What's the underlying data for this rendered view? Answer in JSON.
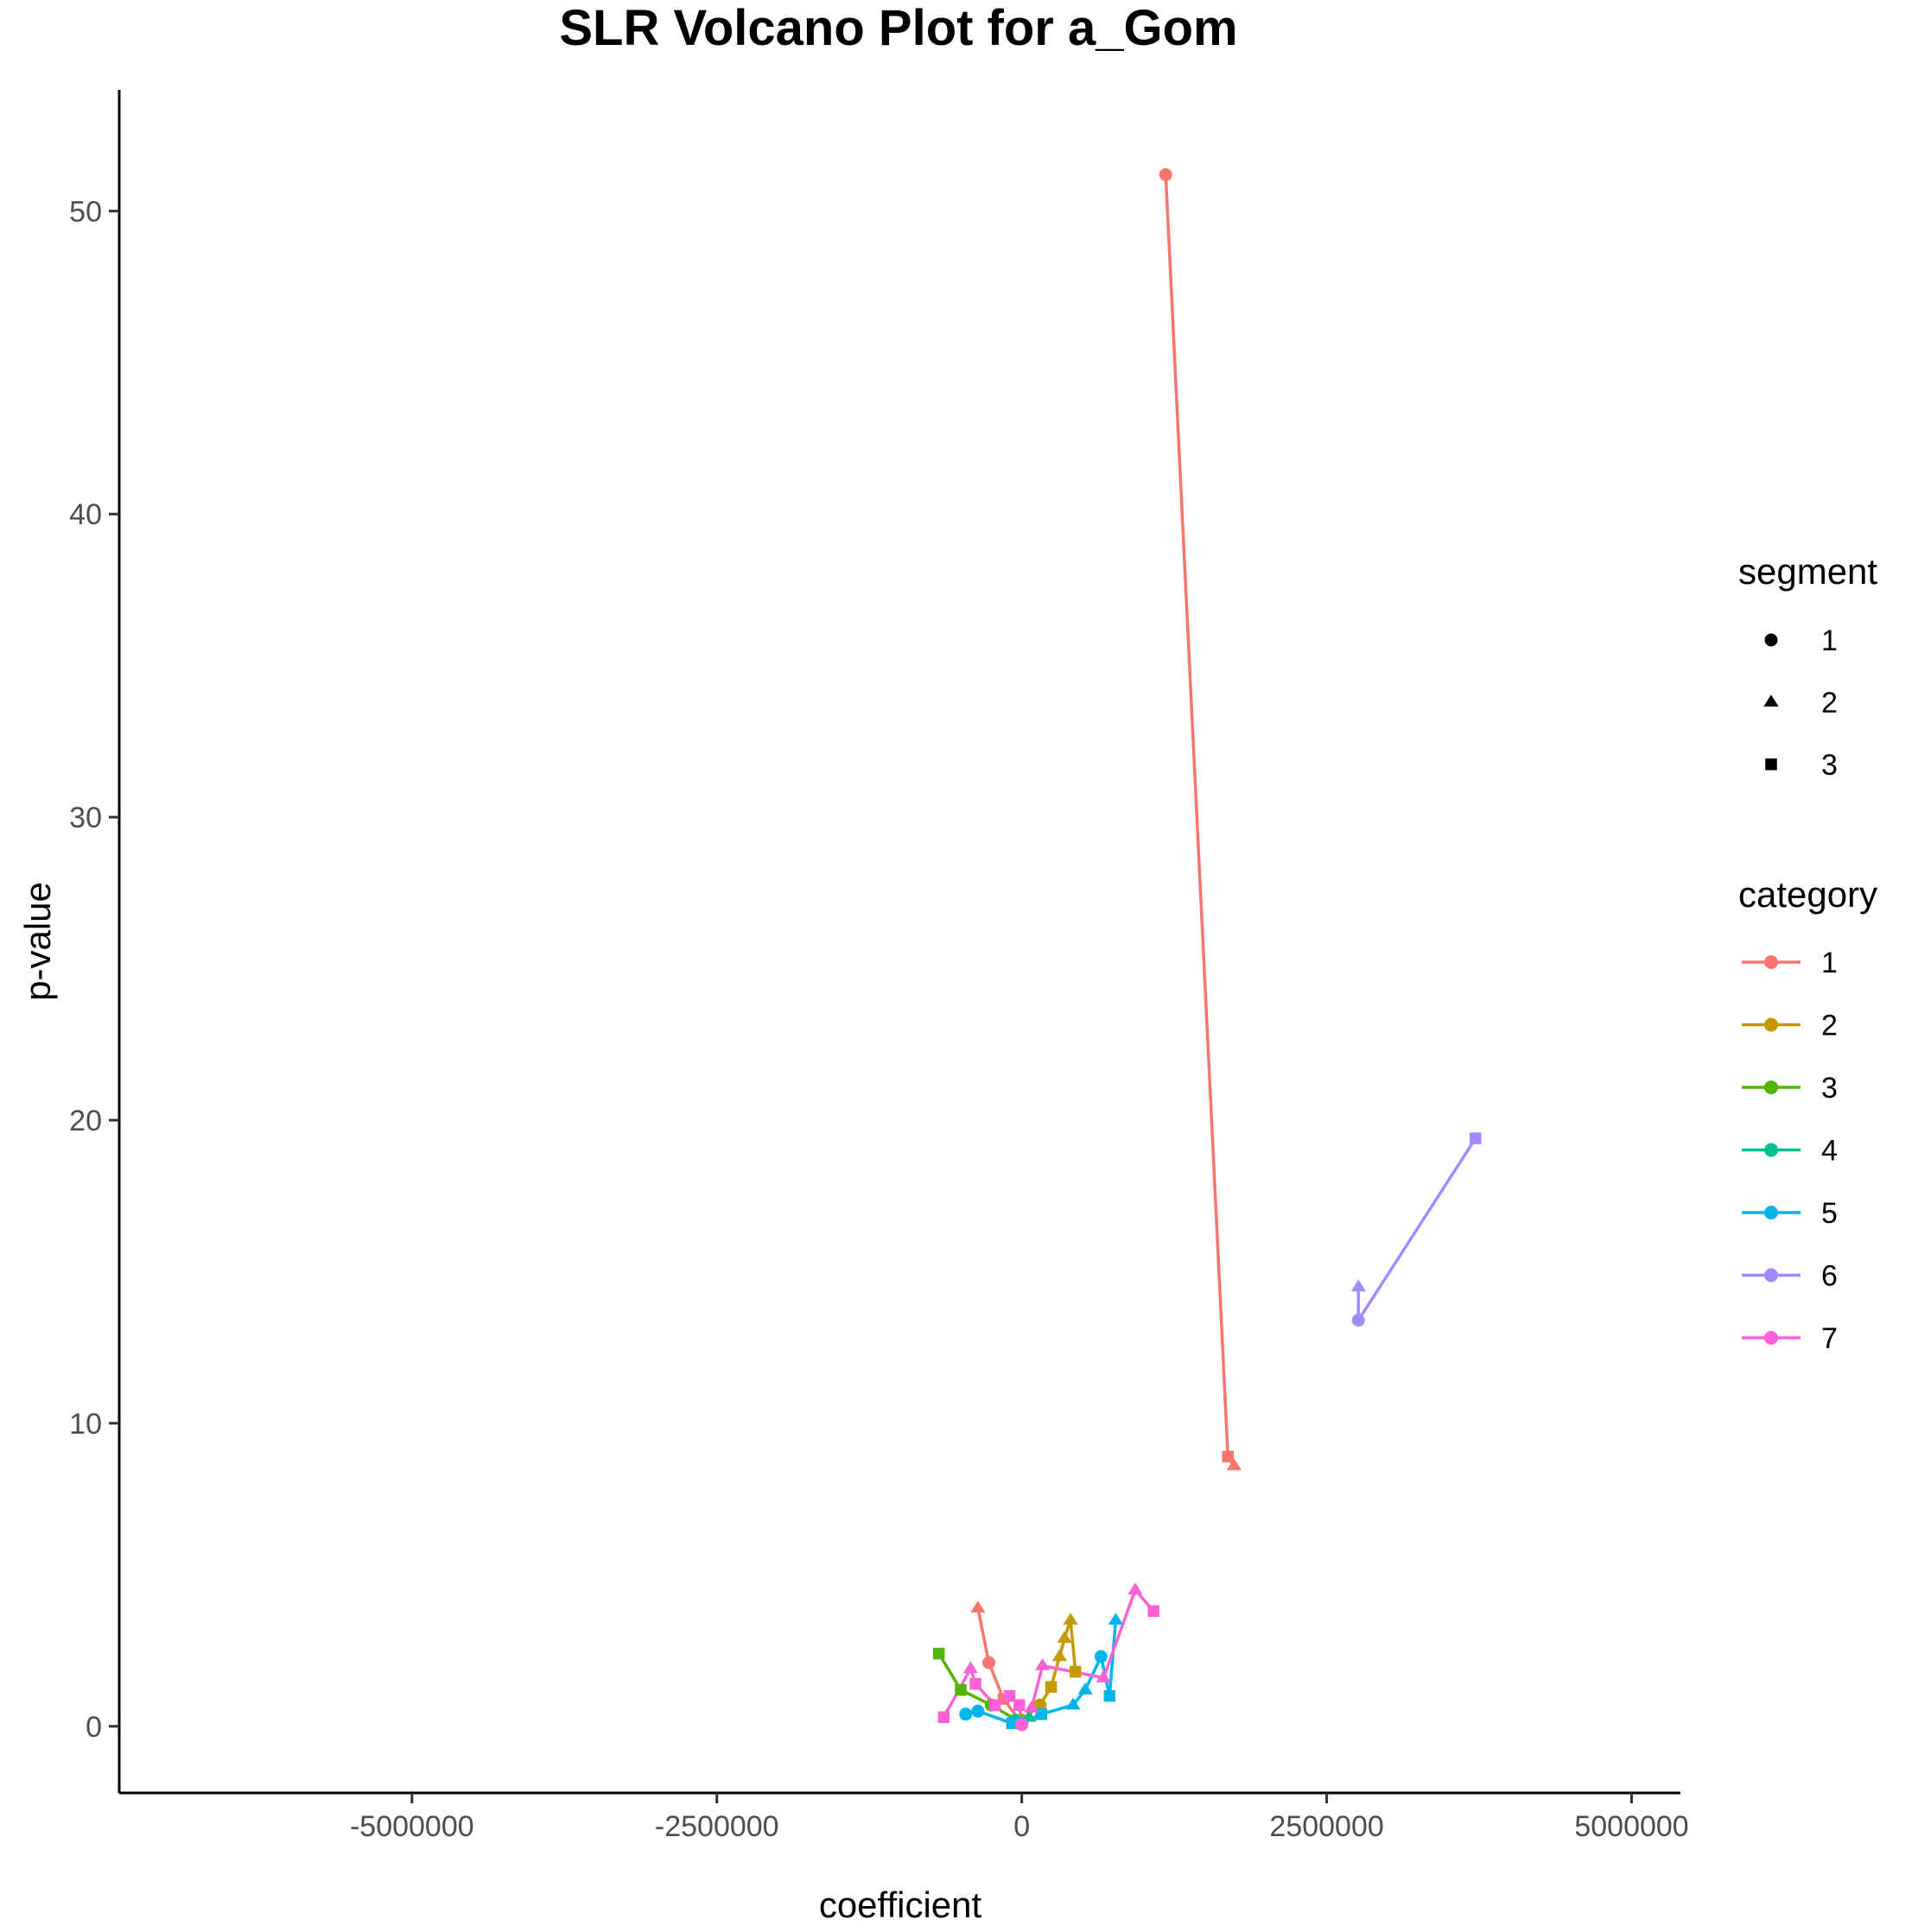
{
  "chart_data": {
    "type": "scatter",
    "title": "SLR Volcano Plot for a_Gom",
    "xlabel": "coefficient",
    "ylabel": "p-value",
    "xlim": [
      -7400000,
      5400000
    ],
    "ylim": [
      -2.2,
      54
    ],
    "x_ticks": [
      -5000000,
      -2500000,
      0,
      2500000,
      5000000
    ],
    "x_tick_labels": [
      "-5000000",
      "-2500000",
      "0",
      "2500000",
      "5000000"
    ],
    "y_ticks": [
      0,
      10,
      20,
      30,
      40,
      50
    ],
    "y_tick_labels": [
      "0",
      "10",
      "20",
      "30",
      "40",
      "50"
    ],
    "grid": false,
    "legend_placement": "right",
    "shape_legend": {
      "title": "segment",
      "entries": [
        {
          "label": "1",
          "shape": "circle"
        },
        {
          "label": "2",
          "shape": "triangle"
        },
        {
          "label": "3",
          "shape": "square"
        }
      ]
    },
    "color_legend": {
      "title": "category",
      "entries": [
        {
          "label": "1",
          "color": "#F8766D"
        },
        {
          "label": "2",
          "color": "#C49A00"
        },
        {
          "label": "3",
          "color": "#53B400"
        },
        {
          "label": "4",
          "color": "#00C094"
        },
        {
          "label": "5",
          "color": "#00B6EB"
        },
        {
          "label": "6",
          "color": "#A58AFF"
        },
        {
          "label": "7",
          "color": "#FB61D7"
        }
      ]
    },
    "series": [
      {
        "category": "1",
        "color": "#F8766D",
        "points": [
          {
            "x": 1180000,
            "y": 51.2,
            "segment": "1"
          },
          {
            "x": 1690000,
            "y": 8.9,
            "segment": "3"
          },
          {
            "x": 1740000,
            "y": 8.6,
            "segment": "2"
          }
        ]
      },
      {
        "category": "1",
        "color": "#F8766D",
        "points": [
          {
            "x": -360000,
            "y": 3.9,
            "segment": "2"
          },
          {
            "x": -270000,
            "y": 2.1,
            "segment": "1"
          },
          {
            "x": -150000,
            "y": 0.9,
            "segment": "3"
          },
          {
            "x": 0,
            "y": 0.1,
            "segment": "1"
          }
        ]
      },
      {
        "category": "2",
        "color": "#C49A00",
        "points": [
          {
            "x": 0,
            "y": 0.2,
            "segment": "1"
          },
          {
            "x": 150000,
            "y": 0.7,
            "segment": "1"
          },
          {
            "x": 240000,
            "y": 1.3,
            "segment": "3"
          },
          {
            "x": 310000,
            "y": 2.3,
            "segment": "2"
          },
          {
            "x": 350000,
            "y": 2.9,
            "segment": "2"
          },
          {
            "x": 400000,
            "y": 3.5,
            "segment": "2"
          },
          {
            "x": 440000,
            "y": 1.8,
            "segment": "3"
          }
        ]
      },
      {
        "category": "3",
        "color": "#53B400",
        "points": [
          {
            "x": -680000,
            "y": 2.4,
            "segment": "3"
          },
          {
            "x": -500000,
            "y": 1.2,
            "segment": "3"
          },
          {
            "x": -250000,
            "y": 0.7,
            "segment": "1"
          },
          {
            "x": 0,
            "y": 0.1,
            "segment": "1"
          }
        ]
      },
      {
        "category": "4",
        "color": "#00C094",
        "points": [
          {
            "x": -50000,
            "y": 0.2,
            "segment": "1"
          },
          {
            "x": 0,
            "y": 0.1,
            "segment": "1"
          },
          {
            "x": 60000,
            "y": 0.3,
            "segment": "2"
          }
        ]
      },
      {
        "category": "5",
        "color": "#00B6EB",
        "points": [
          {
            "x": -460000,
            "y": 0.4,
            "segment": "1"
          },
          {
            "x": -360000,
            "y": 0.5,
            "segment": "1"
          },
          {
            "x": -80000,
            "y": 0.1,
            "segment": "3"
          },
          {
            "x": 0,
            "y": 0.1,
            "segment": "1"
          },
          {
            "x": 160000,
            "y": 0.4,
            "segment": "3"
          },
          {
            "x": 420000,
            "y": 0.7,
            "segment": "2"
          },
          {
            "x": 520000,
            "y": 1.2,
            "segment": "2"
          },
          {
            "x": 650000,
            "y": 2.3,
            "segment": "1"
          },
          {
            "x": 720000,
            "y": 1.0,
            "segment": "3"
          },
          {
            "x": 770000,
            "y": 3.5,
            "segment": "2"
          }
        ]
      },
      {
        "category": "6",
        "color": "#A58AFF",
        "points": [
          {
            "x": 2760000,
            "y": 14.5,
            "segment": "2"
          },
          {
            "x": 2760000,
            "y": 13.4,
            "segment": "1"
          },
          {
            "x": 3720000,
            "y": 19.4,
            "segment": "3"
          }
        ]
      },
      {
        "category": "7",
        "color": "#FB61D7",
        "points": [
          {
            "x": -640000,
            "y": 0.3,
            "segment": "3"
          },
          {
            "x": -420000,
            "y": 1.9,
            "segment": "2"
          },
          {
            "x": -380000,
            "y": 1.4,
            "segment": "3"
          },
          {
            "x": -220000,
            "y": 0.7,
            "segment": "3"
          },
          {
            "x": -100000,
            "y": 1.0,
            "segment": "3"
          },
          {
            "x": -20000,
            "y": 0.7,
            "segment": "3"
          },
          {
            "x": 0,
            "y": 0.05,
            "segment": "1"
          },
          {
            "x": 80000,
            "y": 0.6,
            "segment": "2"
          },
          {
            "x": 170000,
            "y": 2.0,
            "segment": "2"
          },
          {
            "x": 670000,
            "y": 1.6,
            "segment": "2"
          },
          {
            "x": 930000,
            "y": 4.5,
            "segment": "2"
          },
          {
            "x": 1080000,
            "y": 3.8,
            "segment": "3"
          }
        ]
      }
    ]
  }
}
